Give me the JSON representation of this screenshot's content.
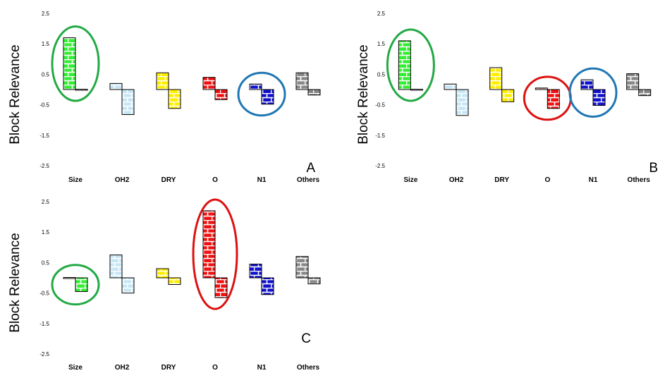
{
  "chart_data": [
    {
      "type": "bar",
      "panel_label": "A",
      "ylabel": "Block Relevance",
      "ylim": [
        -2.5,
        2.5
      ],
      "yticks": [
        "2.5",
        "1.5",
        "0.5",
        "-0.5",
        "-1.5",
        "-2.5"
      ],
      "categories": [
        "Size",
        "OH2",
        "DRY",
        "O",
        "N1",
        "Others"
      ],
      "series": [
        {
          "values": [
            1.7,
            0.2,
            0.55,
            0.4,
            0.18,
            0.55
          ]
        },
        {
          "values": [
            0.0,
            -0.82,
            -0.62,
            -0.33,
            -0.48,
            -0.18
          ]
        }
      ],
      "category_colors": [
        "#33ee33",
        "#c6e6f5",
        "#ffee00",
        "#ee1111",
        "#1111cc",
        "#888888"
      ],
      "highlights": [
        {
          "category": "Size",
          "color": "#22aa44"
        },
        {
          "category": "N1",
          "color": "#1f77b4"
        }
      ]
    },
    {
      "type": "bar",
      "panel_label": "B",
      "ylabel": "Block Relevance",
      "ylim": [
        -2.5,
        2.5
      ],
      "yticks": [
        "2.5",
        "1.5",
        "0.5",
        "-0.5",
        "-1.5",
        "-2.5"
      ],
      "categories": [
        "Size",
        "OH2",
        "DRY",
        "O",
        "N1",
        "Others"
      ],
      "series": [
        {
          "values": [
            1.6,
            0.18,
            0.72,
            0.05,
            0.32,
            0.52
          ]
        },
        {
          "values": [
            0.0,
            -0.85,
            -0.4,
            -0.62,
            -0.52,
            -0.2
          ]
        }
      ],
      "category_colors": [
        "#33ee33",
        "#c6e6f5",
        "#ffee00",
        "#ee1111",
        "#1111cc",
        "#888888"
      ],
      "highlights": [
        {
          "category": "Size",
          "color": "#22aa44"
        },
        {
          "category": "O",
          "color": "#dd1111"
        },
        {
          "category": "N1",
          "color": "#1f77b4"
        }
      ]
    },
    {
      "type": "bar",
      "panel_label": "C",
      "ylabel": "Block Relevance",
      "ylim": [
        -2.5,
        2.5
      ],
      "yticks": [
        "2.5",
        "1.5",
        "0.5",
        "-0.5",
        "-1.5",
        "-2.5"
      ],
      "categories": [
        "Size",
        "OH2",
        "DRY",
        "O",
        "N1",
        "Others"
      ],
      "series": [
        {
          "values": [
            0.0,
            0.75,
            0.3,
            2.2,
            0.45,
            0.7
          ]
        },
        {
          "values": [
            -0.45,
            -0.5,
            -0.22,
            -0.65,
            -0.55,
            -0.2
          ]
        }
      ],
      "category_colors": [
        "#33ee33",
        "#c6e6f5",
        "#ffee00",
        "#ee1111",
        "#1111cc",
        "#888888"
      ],
      "highlights": [
        {
          "category": "Size",
          "color": "#22aa44"
        },
        {
          "category": "O",
          "color": "#dd1111"
        }
      ]
    }
  ]
}
